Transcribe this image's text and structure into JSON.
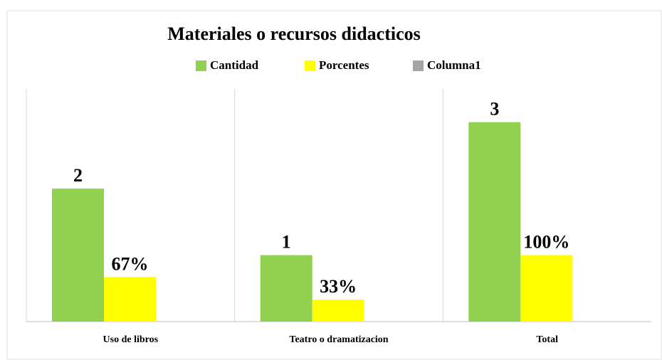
{
  "chart_data": {
    "type": "bar",
    "title": "Materiales o recursos didacticos",
    "categories": [
      "Uso  de libros",
      "Teatro o dramatizacion",
      "Total"
    ],
    "series": [
      {
        "name": "Cantidad",
        "color": "#92d050",
        "values": [
          2,
          1,
          3
        ]
      },
      {
        "name": "Porcentes",
        "color": "#ffff00",
        "values": [
          0.67,
          0.33,
          1
        ],
        "value_labels": [
          "67%",
          "33%",
          "100%"
        ]
      },
      {
        "name": "Columna1",
        "color": "#a5a5a5",
        "values": [
          null,
          null,
          null
        ]
      }
    ],
    "ylim": [
      0,
      3.5
    ],
    "legend": "top"
  }
}
